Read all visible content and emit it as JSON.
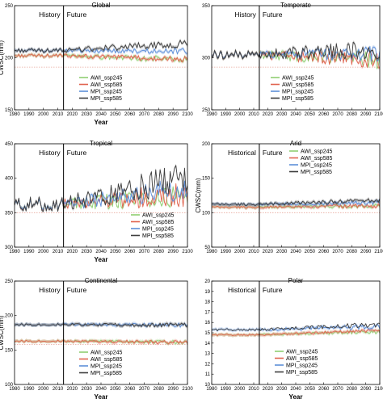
{
  "chart_data": [
    {
      "type": "line",
      "title": "Global",
      "xlabel": "Year",
      "ylabel": "CWSC(mm)",
      "xlim": [
        1980,
        2100
      ],
      "ylim": [
        150,
        250
      ],
      "xticks": [
        1980,
        1990,
        2000,
        2010,
        2020,
        2030,
        2040,
        2050,
        2060,
        2070,
        2080,
        2090,
        2100
      ],
      "yticks": [
        "150",
        "200",
        "250"
      ],
      "divider_year": 2014,
      "era_labels": [
        "History",
        "Future"
      ],
      "reference_line": 191,
      "legend_position": "bottom-center",
      "series": [
        {
          "name": "AWI_ssp245",
          "color": "#8fcf72",
          "history": 202,
          "end": 198,
          "amp": 1.6
        },
        {
          "name": "AWI_ssp585",
          "color": "#e0644f",
          "history": 202,
          "end": 198,
          "amp": 1.6
        },
        {
          "name": "MPI_ssp245",
          "color": "#5e8fd9",
          "history": 207,
          "end": 206,
          "amp": 1.5
        },
        {
          "name": "MPI_ssp585",
          "color": "#3d3d3d",
          "history": 207,
          "end": 214,
          "amp": 2.0
        }
      ]
    },
    {
      "type": "line",
      "title": "Temperate",
      "xlabel": "",
      "ylabel": "",
      "xlim": [
        1980,
        2100
      ],
      "ylim": [
        250,
        350
      ],
      "xticks": [
        1980,
        1990,
        2000,
        2010,
        2020,
        2030,
        2040,
        2050,
        2060,
        2070,
        2080,
        2090,
        2100
      ],
      "yticks": [
        "250",
        "300",
        "350"
      ],
      "divider_year": 2014,
      "era_labels": [
        "History",
        "Future"
      ],
      "reference_line": 291,
      "legend_position": "bottom-center",
      "series": [
        {
          "name": "AWI_ssp245",
          "color": "#8fcf72",
          "history": 303,
          "end": 298,
          "amp": 4.0
        },
        {
          "name": "AWI_ssp585",
          "color": "#e0644f",
          "history": 303,
          "end": 298,
          "amp": 4.0
        },
        {
          "name": "MPI_ssp245",
          "color": "#5e8fd9",
          "history": 303,
          "end": 304,
          "amp": 3.5
        },
        {
          "name": "MPI_ssp585",
          "color": "#3d3d3d",
          "history": 303,
          "end": 308,
          "amp": 4.5
        }
      ]
    },
    {
      "type": "line",
      "title": "Tropical",
      "xlabel": "Year",
      "ylabel": "",
      "xlim": [
        1980,
        2100
      ],
      "ylim": [
        300,
        450
      ],
      "xticks": [
        1980,
        1990,
        2000,
        2010,
        2020,
        2030,
        2040,
        2050,
        2060,
        2070,
        2080,
        2090,
        2100
      ],
      "yticks": [
        "300",
        "350",
        "400",
        "450"
      ],
      "divider_year": 2014,
      "era_labels": [
        "History",
        "Future"
      ],
      "reference_line": 350,
      "legend_position": "bottom-right",
      "series": [
        {
          "name": "AWI_ssp245",
          "color": "#8fcf72",
          "history": 362,
          "end": 375,
          "amp": 8
        },
        {
          "name": "AWI_ssp585",
          "color": "#e0644f",
          "history": 362,
          "end": 376,
          "amp": 9
        },
        {
          "name": "MPI_ssp245",
          "color": "#5e8fd9",
          "history": 362,
          "end": 386,
          "amp": 8
        },
        {
          "name": "MPI_ssp585",
          "color": "#3d3d3d",
          "history": 362,
          "end": 402,
          "amp": 11
        }
      ]
    },
    {
      "type": "line",
      "title": "Arid",
      "xlabel": "",
      "ylabel": "CWSC(mm)",
      "xlim": [
        1980,
        2100
      ],
      "ylim": [
        50,
        200
      ],
      "xticks": [
        1980,
        1990,
        2000,
        2010,
        2020,
        2030,
        2040,
        2050,
        2060,
        2070,
        2080,
        2090,
        2100
      ],
      "yticks": [
        "50",
        "100",
        "150",
        "200"
      ],
      "divider_year": 2014,
      "era_labels": [
        "Historical",
        "Future"
      ],
      "reference_line": 100,
      "legend_position": "top-right",
      "series": [
        {
          "name": "AWI_ssp245",
          "color": "#8fcf72",
          "history": 108,
          "end": 110,
          "amp": 1.5
        },
        {
          "name": "AWI_ssp585",
          "color": "#e0644f",
          "history": 108,
          "end": 110,
          "amp": 1.5
        },
        {
          "name": "MPI_ssp245",
          "color": "#5e8fd9",
          "history": 112,
          "end": 115,
          "amp": 1.5
        },
        {
          "name": "MPI_ssp585",
          "color": "#3d3d3d",
          "history": 112,
          "end": 118,
          "amp": 1.8
        }
      ]
    },
    {
      "type": "line",
      "title": "Continental",
      "xlabel": "Year",
      "ylabel": "CWSC(mm)",
      "xlim": [
        1980,
        2100
      ],
      "ylim": [
        100,
        250
      ],
      "xticks": [
        1980,
        1990,
        2000,
        2010,
        2020,
        2030,
        2040,
        2050,
        2060,
        2070,
        2080,
        2090,
        2100
      ],
      "yticks": [
        "100",
        "150",
        "200",
        "250"
      ],
      "divider_year": 2014,
      "era_labels": [
        "History",
        "Future"
      ],
      "reference_line": 158,
      "legend_position": "bottom-center",
      "series": [
        {
          "name": "AWI_ssp245",
          "color": "#8fcf72",
          "history": 163,
          "end": 161,
          "amp": 1.4
        },
        {
          "name": "AWI_ssp585",
          "color": "#e0644f",
          "history": 163,
          "end": 161,
          "amp": 1.4
        },
        {
          "name": "MPI_ssp245",
          "color": "#5e8fd9",
          "history": 187,
          "end": 186,
          "amp": 1.5
        },
        {
          "name": "MPI_ssp585",
          "color": "#3d3d3d",
          "history": 187,
          "end": 186,
          "amp": 1.5
        }
      ]
    },
    {
      "type": "line",
      "title": "Polar",
      "xlabel": "Year",
      "ylabel": "",
      "xlim": [
        1980,
        2100
      ],
      "ylim": [
        10,
        20
      ],
      "xticks": [
        1980,
        1990,
        2000,
        2010,
        2020,
        2030,
        2040,
        2050,
        2060,
        2070,
        2080,
        2090,
        2100
      ],
      "yticks": [
        "10",
        "11",
        "12",
        "13",
        "14",
        "15",
        "16",
        "17",
        "18",
        "19",
        "20"
      ],
      "divider_year": 2014,
      "era_labels": [
        "Historical",
        "Future"
      ],
      "reference_line": null,
      "legend_position": "bottom-right",
      "series": [
        {
          "name": "AWI_ssp245",
          "color": "#8fcf72",
          "history": 14.8,
          "end": 15.1,
          "amp": 0.08
        },
        {
          "name": "AWI_ssp585",
          "color": "#e0644f",
          "history": 14.8,
          "end": 15.2,
          "amp": 0.08
        },
        {
          "name": "MPI_ssp245",
          "color": "#5e8fd9",
          "history": 15.3,
          "end": 15.6,
          "amp": 0.12
        },
        {
          "name": "MPI_ssp585",
          "color": "#3d3d3d",
          "history": 15.3,
          "end": 15.8,
          "amp": 0.12
        }
      ]
    }
  ]
}
